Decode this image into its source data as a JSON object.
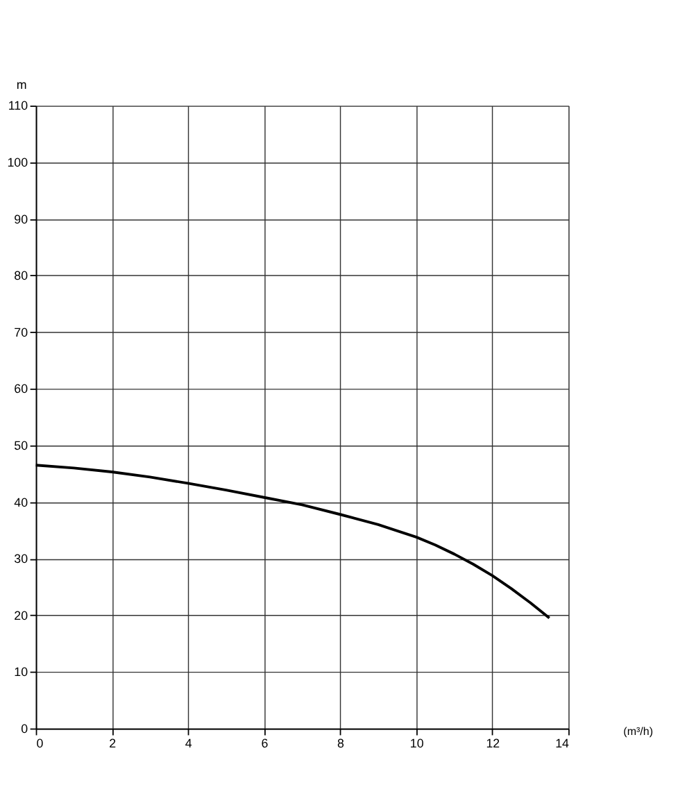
{
  "chart_data": {
    "type": "line",
    "xlabel": "(m³/h)",
    "ylabel": "m",
    "xlim": [
      0,
      14
    ],
    "ylim": [
      0,
      110
    ],
    "xticks": [
      0,
      2,
      4,
      6,
      8,
      10,
      12,
      14
    ],
    "yticks": [
      0,
      10,
      20,
      30,
      40,
      50,
      60,
      70,
      80,
      90,
      100,
      110
    ],
    "grid": true,
    "marker": "none",
    "line_style": "solid",
    "series": [
      {
        "color": "#000000",
        "x": [
          0,
          1,
          2,
          3,
          4,
          5,
          6,
          7,
          8,
          9,
          10,
          10.5,
          11,
          11.5,
          12,
          12.5,
          13,
          13.5
        ],
        "values": [
          46.5,
          46,
          45.3,
          44.4,
          43.3,
          42.1,
          40.8,
          39.5,
          37.8,
          36,
          33.8,
          32.4,
          30.8,
          29,
          27,
          24.7,
          22.2,
          19.5
        ]
      }
    ]
  }
}
